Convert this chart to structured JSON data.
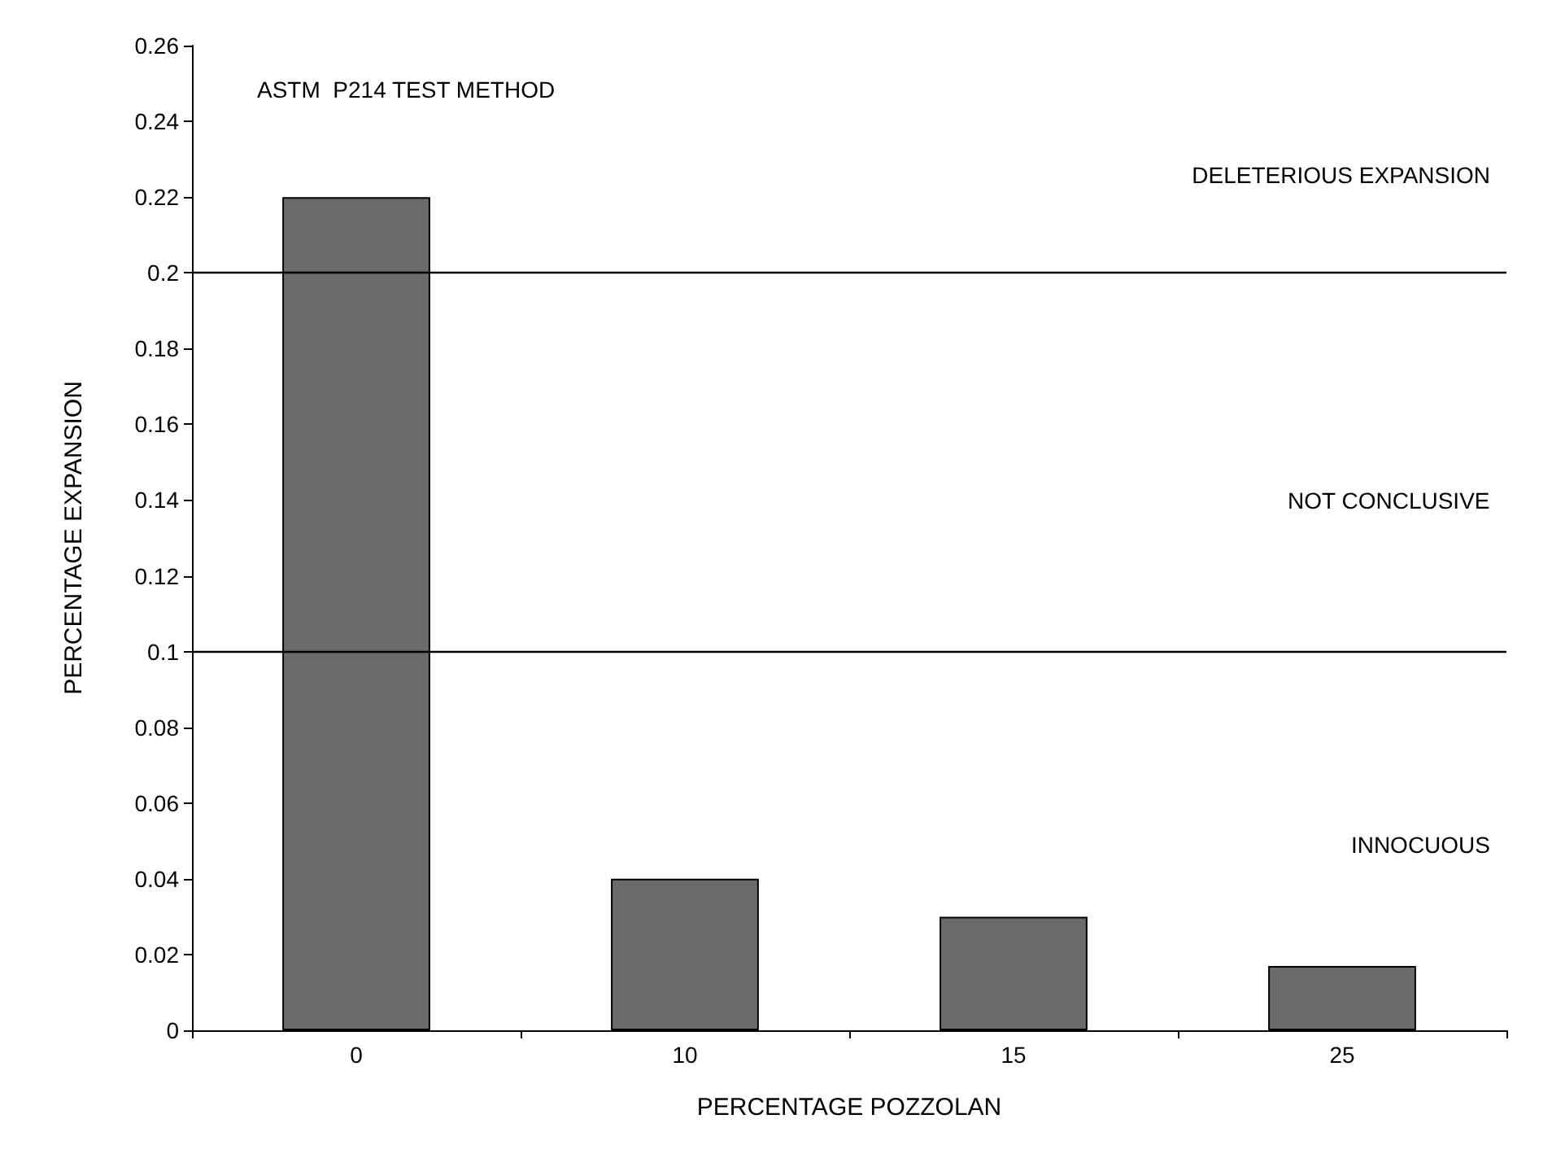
{
  "chart_data": {
    "type": "bar",
    "xlabel": "PERCENTAGE POZZOLAN",
    "ylabel": "PERCENTAGE EXPANSION",
    "categories": [
      "0",
      "10",
      "15",
      "25"
    ],
    "values": [
      0.22,
      0.04,
      0.03,
      0.017
    ],
    "color": "#6b6b6b",
    "ylim": [
      0,
      0.26
    ],
    "yticks": [
      0,
      0.02,
      0.04,
      0.06,
      0.08,
      0.1,
      0.12,
      0.14,
      0.16,
      0.18,
      0.2,
      0.22,
      0.24,
      0.26
    ],
    "grid": false,
    "ref_lines": [
      {
        "axis": "y",
        "value": 0.2
      },
      {
        "axis": "y",
        "value": 0.1
      }
    ],
    "annotations": [
      "ASTM  P214 TEST METHOD",
      "DELETERIOUS EXPANSION",
      "NOT CONCLUSIVE",
      "INNOCUOUS"
    ]
  }
}
